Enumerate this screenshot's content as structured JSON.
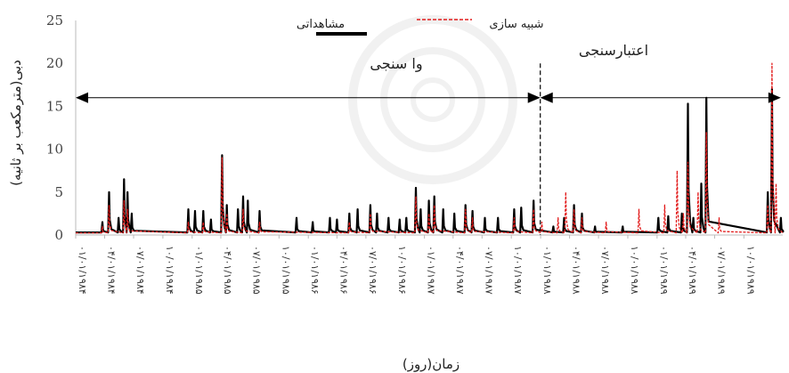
{
  "chart_data": {
    "type": "line",
    "xlabel": "زمان(روز)",
    "ylabel": "دبی(مترمکعب بر ثانیه)",
    "ylim": [
      0,
      25
    ],
    "yticks": [
      "0",
      "5",
      "10",
      "15",
      "20",
      "25"
    ],
    "x_tick_labels": [
      "۰۱/۰۱/۱۹۸۴",
      "۰۴/۰۱/۱۹۸۴",
      "۰۷/۰۱/۱۹۸۴",
      "۱۰/۰۱/۱۹۸۴",
      "۰۱/۰۱/۱۹۸۵",
      "۰۴/۰۱/۱۹۸۵",
      "۰۷/۰۱/۱۹۸۵",
      "۱۰/۰۱/۱۹۸۵",
      "۰۱/۰۱/۱۹۸۶",
      "۰۴/۰۱/۱۹۸۶",
      "۰۷/۰۱/۱۹۸۶",
      "۱۰/۰۱/۱۹۸۶",
      "۰۱/۰۱/۱۹۸۷",
      "۰۴/۰۱/۱۹۸۷",
      "۰۷/۰۱/۱۹۸۷",
      "۱۰/۰۱/۱۹۸۷",
      "۰۱/۰۱/۱۹۸۸",
      "۰۴/۰۱/۱۹۸۸",
      "۰۷/۰۱/۱۹۸۸",
      "۱۰/۰۱/۱۹۸۸",
      "۰۱/۰۱/۱۹۸۹",
      "۰۴/۰۱/۱۹۸۹",
      "۰۷/۰۱/۱۹۸۹",
      "۱۰/۰۱/۱۹۸۹"
    ],
    "x_range": [
      "1984-01-01",
      "1990-01-31"
    ],
    "legend_position": "top",
    "annotations": {
      "calibration_label": "وا سنجی",
      "validation_label": "اعتبارسنجی",
      "split_date": "1987-12-31",
      "calibration_arrow_range": [
        "1984-01-01",
        "1987-12-31"
      ],
      "validation_arrow_range": [
        "1987-12-31",
        "1990-01-25"
      ],
      "arrow_level": 16
    },
    "series": [
      {
        "name": "مشاهداتی",
        "color": "#000000",
        "style": "solid",
        "peaks": [
          [
            "1984-03-25",
            1.5
          ],
          [
            "1984-04-15",
            5.0
          ],
          [
            "1984-05-15",
            2.0
          ],
          [
            "1984-06-01",
            6.5
          ],
          [
            "1984-06-12",
            5.0
          ],
          [
            "1984-06-25",
            2.5
          ],
          [
            "1984-12-20",
            3.0
          ],
          [
            "1985-01-10",
            2.8
          ],
          [
            "1985-02-05",
            2.8
          ],
          [
            "1985-03-01",
            1.8
          ],
          [
            "1985-04-05",
            9.3
          ],
          [
            "1985-04-20",
            3.5
          ],
          [
            "1985-05-25",
            3.0
          ],
          [
            "1985-06-10",
            4.5
          ],
          [
            "1985-06-25",
            4.0
          ],
          [
            "1985-08-01",
            2.8
          ],
          [
            "1985-11-25",
            2.0
          ],
          [
            "1986-01-15",
            1.5
          ],
          [
            "1986-03-10",
            2.0
          ],
          [
            "1986-04-01",
            1.8
          ],
          [
            "1986-05-10",
            2.5
          ],
          [
            "1986-06-05",
            3.0
          ],
          [
            "1986-07-15",
            3.5
          ],
          [
            "1986-08-05",
            2.5
          ],
          [
            "1986-09-10",
            2.0
          ],
          [
            "1986-10-15",
            1.8
          ],
          [
            "1986-11-05",
            2.0
          ],
          [
            "1986-12-05",
            5.5
          ],
          [
            "1986-12-20",
            3.0
          ],
          [
            "1987-01-15",
            4.0
          ],
          [
            "1987-02-01",
            4.5
          ],
          [
            "1987-03-01",
            3.0
          ],
          [
            "1987-04-05",
            2.5
          ],
          [
            "1987-05-10",
            3.5
          ],
          [
            "1987-06-01",
            2.8
          ],
          [
            "1987-07-10",
            2.0
          ],
          [
            "1987-08-20",
            2.0
          ],
          [
            "1987-10-10",
            3.0
          ],
          [
            "1987-11-01",
            3.2
          ],
          [
            "1987-12-10",
            4.0
          ],
          [
            "1988-02-10",
            1.0
          ],
          [
            "1988-03-15",
            2.0
          ],
          [
            "1988-04-15",
            3.5
          ],
          [
            "1988-05-10",
            2.5
          ],
          [
            "1988-06-20",
            1.0
          ],
          [
            "1988-09-15",
            1.0
          ],
          [
            "1989-01-05",
            2.0
          ],
          [
            "1989-02-05",
            2.2
          ],
          [
            "1989-03-20",
            2.5
          ],
          [
            "1989-04-08",
            15.3
          ],
          [
            "1989-04-25",
            2.0
          ],
          [
            "1989-05-20",
            6.0
          ],
          [
            "1989-06-05",
            16.0
          ],
          [
            "1989-12-15",
            5.0
          ],
          [
            "1989-12-28",
            17.0
          ],
          [
            "1990-01-25",
            2.0
          ]
        ]
      },
      {
        "name": "شبیه سازی",
        "color": "#e21b1b",
        "style": "dashed",
        "peaks": [
          [
            "1984-03-25",
            1.0
          ],
          [
            "1984-04-15",
            3.5
          ],
          [
            "1984-06-01",
            4.0
          ],
          [
            "1984-06-12",
            3.0
          ],
          [
            "1984-12-20",
            1.5
          ],
          [
            "1985-02-05",
            1.5
          ],
          [
            "1985-04-05",
            9.0
          ],
          [
            "1985-04-20",
            2.5
          ],
          [
            "1985-06-10",
            3.0
          ],
          [
            "1985-08-01",
            1.5
          ],
          [
            "1986-05-10",
            1.5
          ],
          [
            "1986-07-15",
            2.5
          ],
          [
            "1986-12-05",
            4.5
          ],
          [
            "1987-01-15",
            2.5
          ],
          [
            "1987-02-01",
            3.5
          ],
          [
            "1987-05-10",
            3.0
          ],
          [
            "1987-06-01",
            2.0
          ],
          [
            "1987-10-10",
            2.0
          ],
          [
            "1987-12-10",
            3.0
          ],
          [
            "1988-01-05",
            1.5
          ],
          [
            "1988-02-25",
            2.0
          ],
          [
            "1988-03-20",
            5.0
          ],
          [
            "1988-04-15",
            3.0
          ],
          [
            "1988-05-10",
            2.0
          ],
          [
            "1988-07-25",
            1.5
          ],
          [
            "1988-11-05",
            3.0
          ],
          [
            "1989-01-25",
            3.5
          ],
          [
            "1989-03-05",
            7.5
          ],
          [
            "1989-03-25",
            2.5
          ],
          [
            "1989-04-08",
            8.5
          ],
          [
            "1989-05-10",
            5.0
          ],
          [
            "1989-06-05",
            12.0
          ],
          [
            "1989-07-15",
            2.0
          ],
          [
            "1989-12-15",
            3.5
          ],
          [
            "1989-12-28",
            20.0
          ],
          [
            "1990-01-10",
            6.0
          ]
        ]
      }
    ]
  }
}
